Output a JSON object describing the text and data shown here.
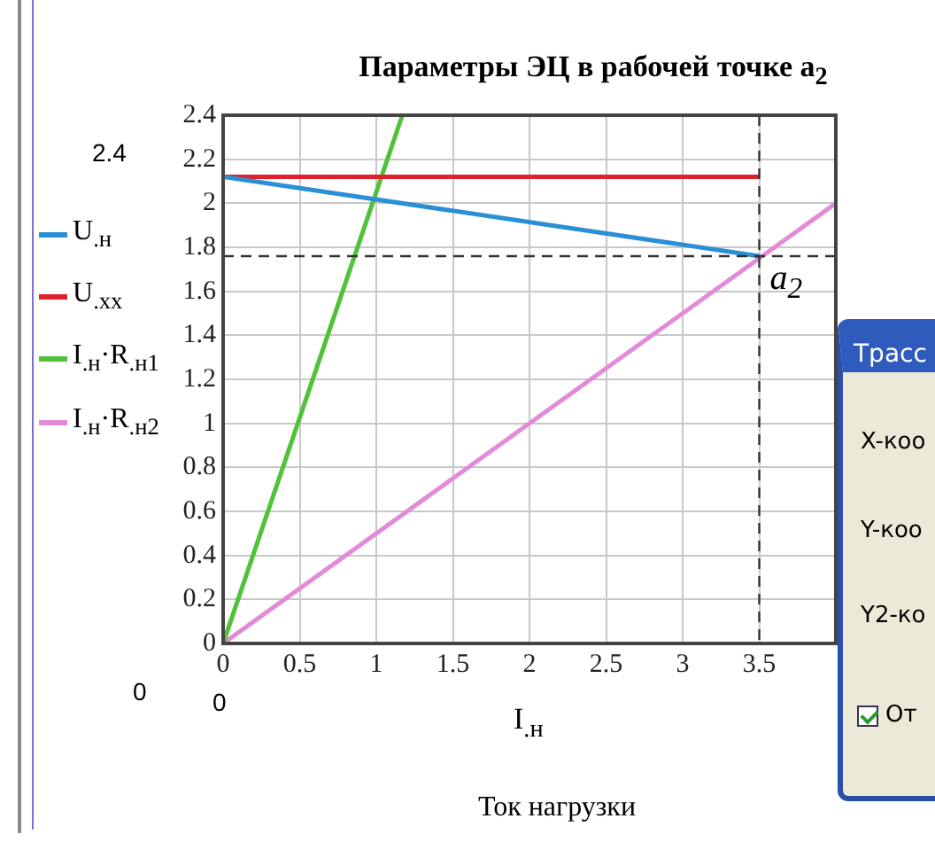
{
  "chart_data": {
    "type": "line",
    "title": "Параметры ЭЦ в рабочей точке a$_{2}$",
    "xlabel": "I$_{.н}$",
    "xlim": [
      0,
      4
    ],
    "xticks": [
      0,
      0.5,
      1,
      1.5,
      2,
      2.5,
      3,
      3.5
    ],
    "ylim": [
      0,
      2.4
    ],
    "yticks": [
      0,
      0.2,
      0.4,
      0.6,
      0.8,
      1,
      1.2,
      1.4,
      1.6,
      1.8,
      2,
      2.2,
      2.4
    ],
    "grid": true,
    "legend": "left",
    "marker": "none",
    "line_style": "solid",
    "series": [
      {
        "name": "U$_{.н}$",
        "color": "#2b8fd6",
        "x": [
          0,
          3.5
        ],
        "values": [
          2.12,
          1.76
        ]
      },
      {
        "name": "U$_{.xx}$",
        "color": "#e0202a",
        "x": [
          0,
          3.5
        ],
        "values": [
          2.12,
          2.12
        ]
      },
      {
        "name": "I$_{.н}$·R$_{.н1}$",
        "color": "#4fc23a",
        "x": [
          0,
          1.17
        ],
        "values": [
          0,
          2.4
        ]
      },
      {
        "name": "I$_{.н}$·R$_{.н2}$",
        "color": "#e38ad8",
        "x": [
          0,
          4
        ],
        "values": [
          0,
          2.0
        ]
      }
    ],
    "ref_lines": [
      {
        "axis": "x",
        "value": 3.5,
        "line_style": "dashed",
        "color": "#333333"
      },
      {
        "axis": "y",
        "value": 1.76,
        "line_style": "dashed",
        "color": "#333333"
      }
    ],
    "annotations": [
      {
        "text": "a$_{2}$",
        "x": 3.5,
        "y": 1.76
      },
      "2.4",
      "0",
      "0",
      "Ток нагрузки",
      "Трасс",
      "X-коо",
      "Y-коо",
      "Y2-ко",
      "От"
    ]
  }
}
